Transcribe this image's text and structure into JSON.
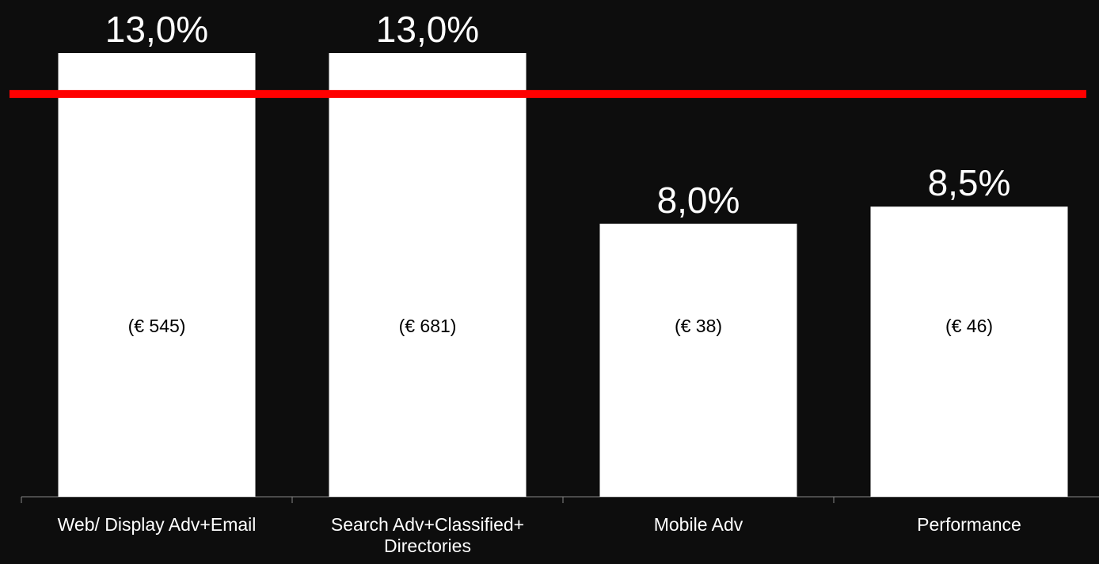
{
  "chart_data": {
    "type": "bar",
    "categories": [
      "Web/ Display Adv+Email",
      "Search Adv+Classified+\nDirectories",
      "Mobile Adv",
      "Performance"
    ],
    "values": [
      13.0,
      13.0,
      8.0,
      8.5
    ],
    "value_labels": [
      "13,0%",
      "13,0%",
      "8,0%",
      "8,5%"
    ],
    "amounts": [
      545,
      681,
      38,
      46
    ],
    "amount_labels": [
      "(€ 545)",
      "(€ 681)",
      "(€ 38)",
      "(€ 46)"
    ],
    "color": "#ffffff",
    "ylim": [
      0,
      14.5
    ],
    "reference_value": 11.8,
    "reference_color": "#ff0000"
  }
}
